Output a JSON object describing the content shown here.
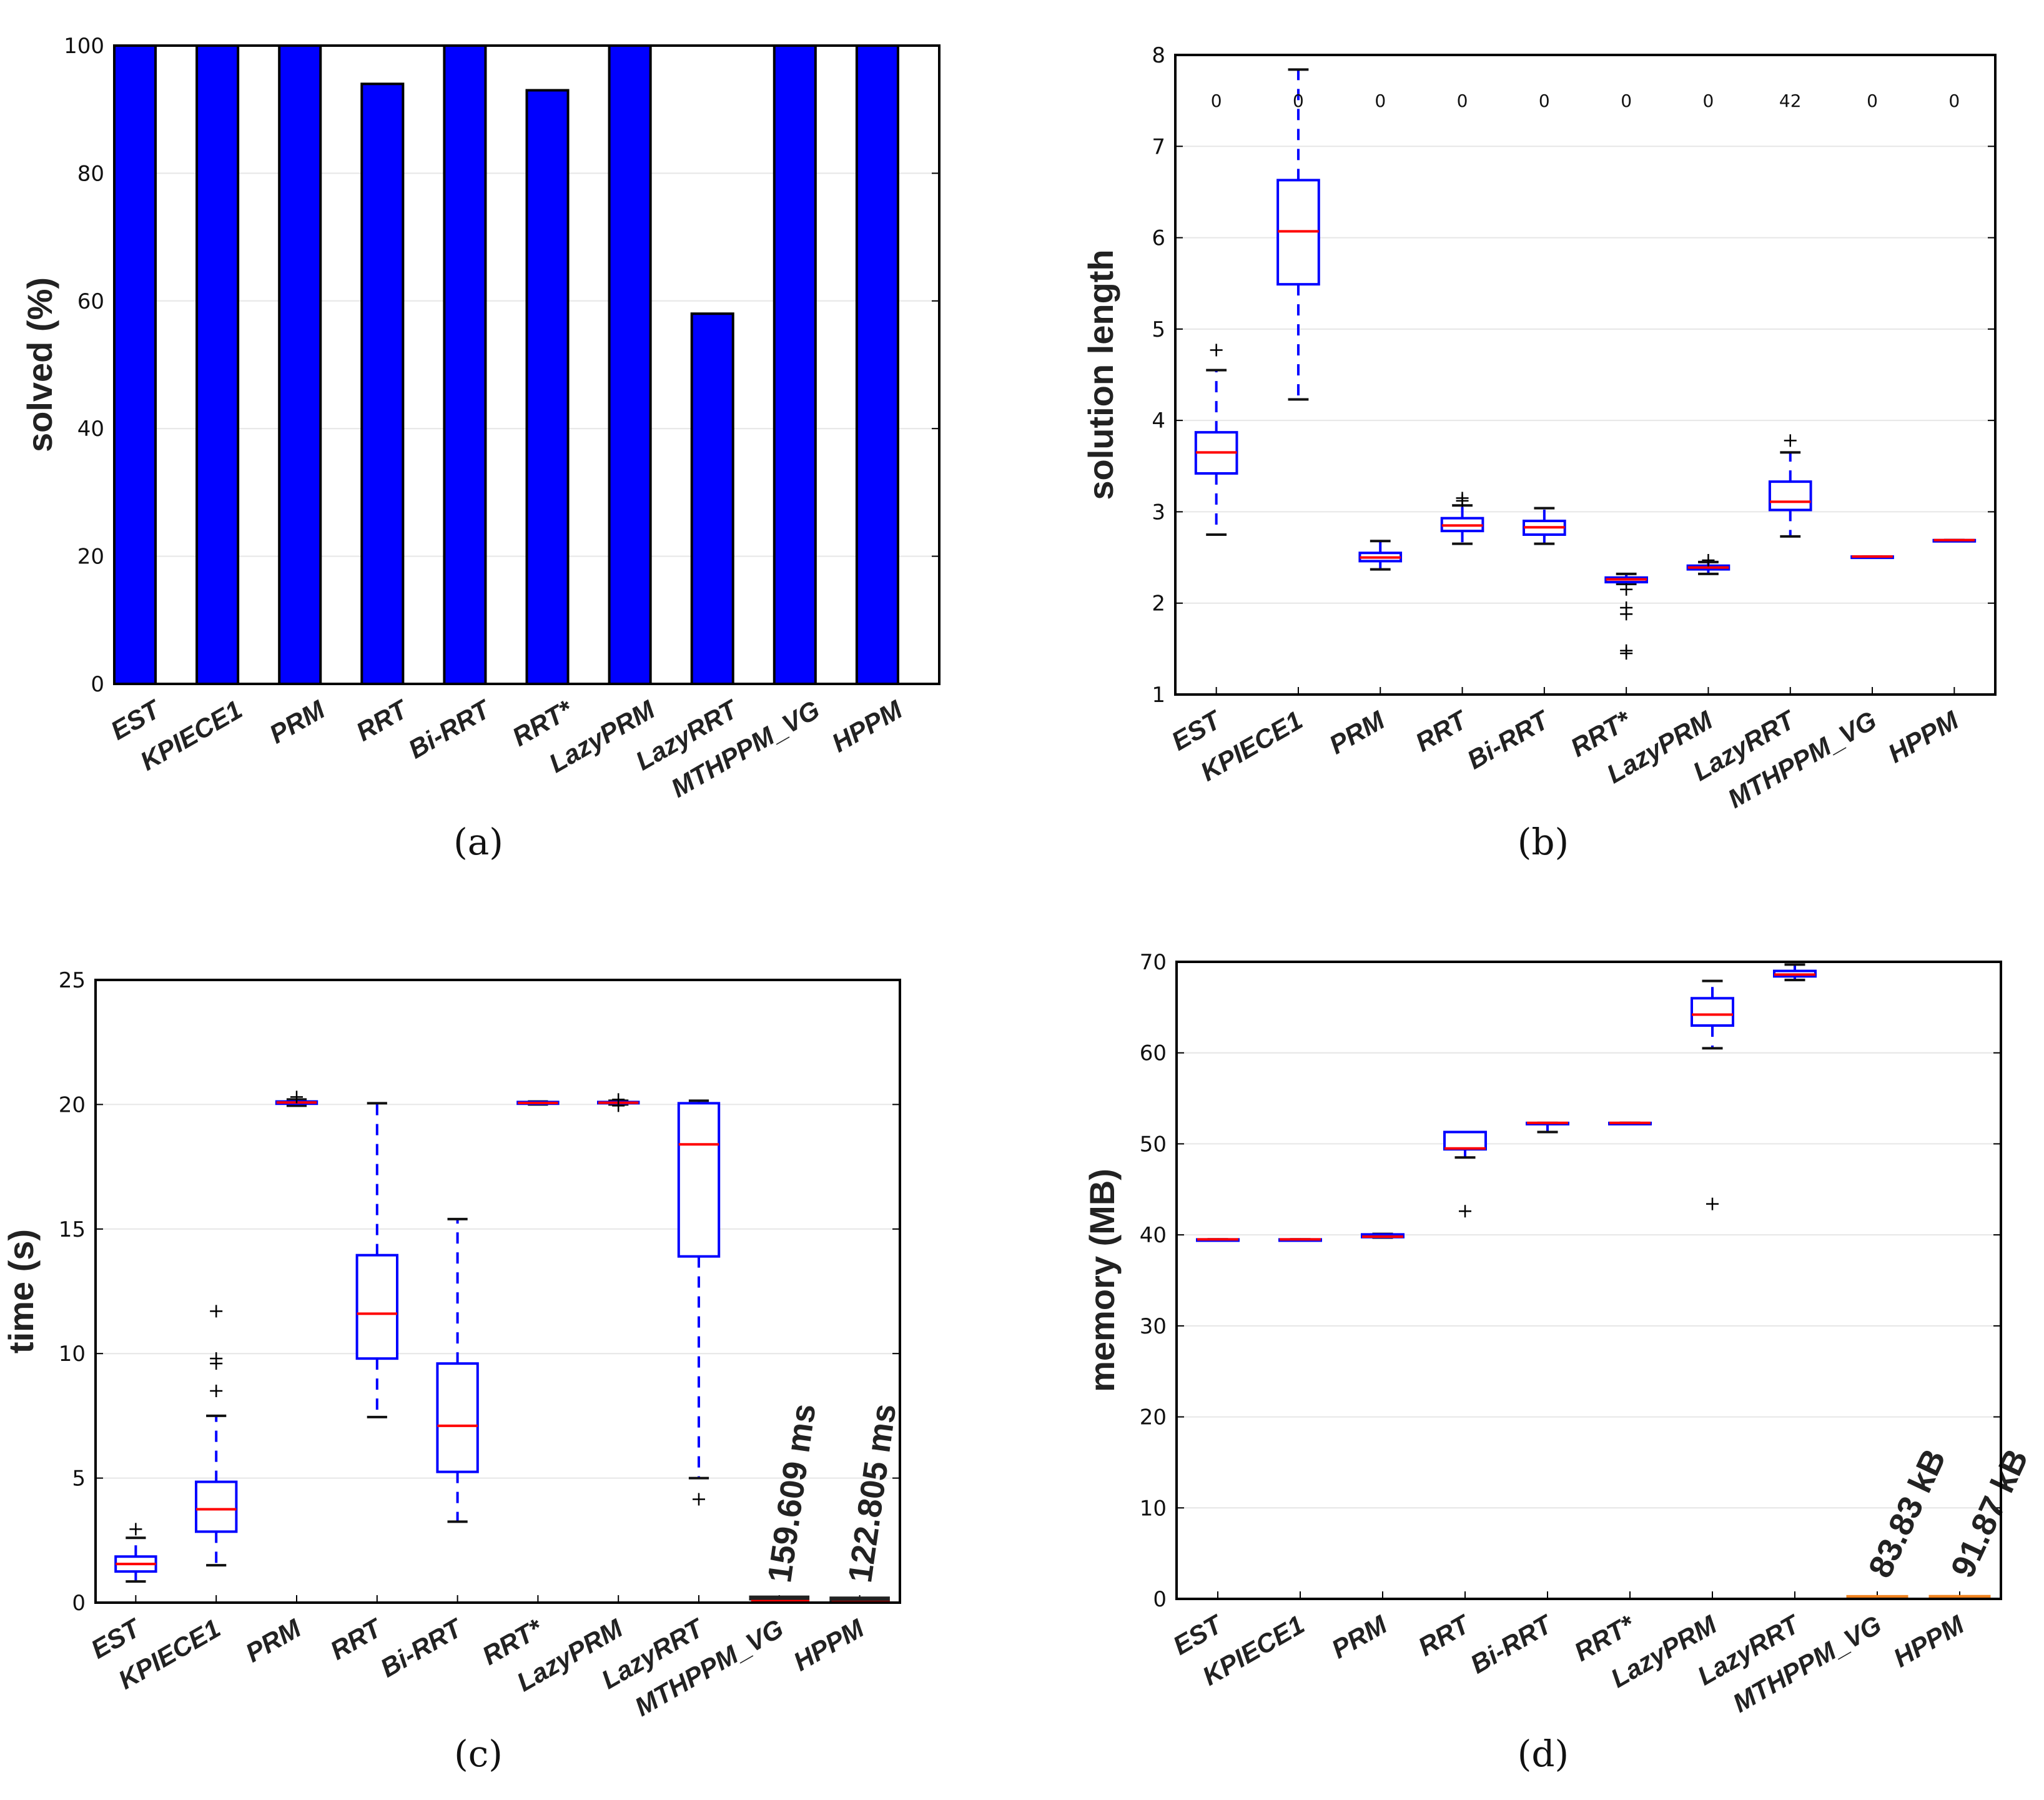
{
  "chart_data": [
    {
      "type": "bar",
      "panel_label": "(a)",
      "ylabel": "solved (%)",
      "ylim": [
        0,
        100
      ],
      "yticks": [
        0,
        20,
        40,
        60,
        80,
        100
      ],
      "grid": true,
      "categories": [
        "EST",
        "KPIECE1",
        "PRM",
        "RRT",
        "Bi-RRT",
        "RRT*",
        "LazyPRM",
        "LazyRRT",
        "MTHPPM_VG",
        "HPPM"
      ],
      "values": [
        100,
        100,
        100,
        94,
        100,
        93,
        100,
        58,
        100,
        100
      ],
      "bar_color": "#0000ff"
    },
    {
      "type": "box",
      "panel_label": "(b)",
      "ylabel": "solution length",
      "ylim": [
        1,
        8
      ],
      "yticks": [
        1,
        2,
        3,
        4,
        5,
        6,
        7,
        8
      ],
      "grid": true,
      "categories": [
        "EST",
        "KPIECE1",
        "PRM",
        "RRT",
        "Bi-RRT",
        "RRT*",
        "LazyPRM",
        "LazyRRT",
        "MTHPPM_VG",
        "HPPM"
      ],
      "counts": [
        "0",
        "0",
        "0",
        "0",
        "0",
        "0",
        "0",
        "42",
        "0",
        "0"
      ],
      "counts_y": 7.5,
      "boxes": [
        {
          "min": 2.75,
          "q1": 3.42,
          "med": 3.65,
          "q3": 3.87,
          "max": 4.55,
          "outliers": [
            4.77
          ]
        },
        {
          "min": 4.23,
          "q1": 5.49,
          "med": 6.07,
          "q3": 6.63,
          "max": 7.84,
          "outliers": []
        },
        {
          "min": 2.37,
          "q1": 2.46,
          "med": 2.5,
          "q3": 2.55,
          "max": 2.68,
          "outliers": []
        },
        {
          "min": 2.65,
          "q1": 2.79,
          "med": 2.85,
          "q3": 2.93,
          "max": 3.07,
          "outliers": [
            3.12,
            3.15
          ]
        },
        {
          "min": 2.65,
          "q1": 2.75,
          "med": 2.83,
          "q3": 2.9,
          "max": 3.04,
          "outliers": []
        },
        {
          "min": 2.21,
          "q1": 2.23,
          "med": 2.26,
          "q3": 2.28,
          "max": 2.32,
          "outliers": [
            2.15,
            1.95,
            1.88,
            1.48,
            1.45
          ]
        },
        {
          "min": 2.32,
          "q1": 2.37,
          "med": 2.39,
          "q3": 2.41,
          "max": 2.45,
          "outliers": [
            2.47
          ]
        },
        {
          "min": 2.73,
          "q1": 3.02,
          "med": 3.11,
          "q3": 3.33,
          "max": 3.65,
          "outliers": [
            3.78
          ]
        },
        {
          "min": 2.51,
          "q1": 2.51,
          "med": 2.51,
          "q3": 2.51,
          "max": 2.51,
          "outliers": []
        },
        {
          "min": 2.69,
          "q1": 2.69,
          "med": 2.69,
          "q3": 2.69,
          "max": 2.69,
          "outliers": []
        }
      ]
    },
    {
      "type": "box",
      "panel_label": "(c)",
      "ylabel": "time (s)",
      "ylim": [
        0,
        25
      ],
      "yticks": [
        0,
        5,
        10,
        15,
        20,
        25
      ],
      "grid": true,
      "categories": [
        "EST",
        "KPIECE1",
        "PRM",
        "RRT",
        "Bi-RRT",
        "RRT*",
        "LazyPRM",
        "LazyRRT",
        "MTHPPM_VG",
        "HPPM"
      ],
      "boxes": [
        {
          "min": 0.85,
          "q1": 1.25,
          "med": 1.55,
          "q3": 1.85,
          "max": 2.6,
          "outliers": [
            2.95
          ]
        },
        {
          "min": 1.5,
          "q1": 2.85,
          "med": 3.75,
          "q3": 4.85,
          "max": 7.5,
          "outliers": [
            8.5,
            9.6,
            9.8,
            11.7
          ]
        },
        {
          "min": 19.95,
          "q1": 20.03,
          "med": 20.08,
          "q3": 20.12,
          "max": 20.2,
          "outliers": [
            20.3
          ]
        },
        {
          "min": 7.45,
          "q1": 9.8,
          "med": 11.6,
          "q3": 13.95,
          "max": 20.05,
          "outliers": []
        },
        {
          "min": 3.25,
          "q1": 5.25,
          "med": 7.1,
          "q3": 9.6,
          "max": 15.4,
          "outliers": []
        },
        {
          "min": 20.0,
          "q1": 20.03,
          "med": 20.06,
          "q3": 20.1,
          "max": 20.12,
          "outliers": []
        },
        {
          "min": 20.0,
          "q1": 20.05,
          "med": 20.07,
          "q3": 20.1,
          "max": 20.15,
          "outliers": [
            20.2,
            19.95
          ]
        },
        {
          "min": 5.0,
          "q1": 13.9,
          "med": 18.4,
          "q3": 20.05,
          "max": 20.15,
          "outliers": [
            4.15
          ]
        },
        {
          "min": 0.16,
          "q1": 0.16,
          "med": 0.16,
          "q3": 0.16,
          "max": 0.16,
          "outliers": [],
          "highlight": true
        },
        {
          "min": 0.12,
          "q1": 0.12,
          "med": 0.12,
          "q3": 0.12,
          "max": 0.12,
          "outliers": [],
          "highlight": true
        }
      ],
      "annotations": [
        {
          "category": "MTHPPM_VG",
          "text": "159.609 ms"
        },
        {
          "category": "HPPM",
          "text": "122.805 ms"
        }
      ],
      "highlight_color": "#222222"
    },
    {
      "type": "box",
      "panel_label": "(d)",
      "ylabel": "memory (MB)",
      "ylim": [
        0,
        70
      ],
      "yticks": [
        0,
        10,
        20,
        30,
        40,
        50,
        60,
        70
      ],
      "grid": true,
      "categories": [
        "EST",
        "KPIECE1",
        "PRM",
        "RRT",
        "Bi-RRT",
        "RRT*",
        "LazyPRM",
        "LazyRRT",
        "MTHPPM_VG",
        "HPPM"
      ],
      "boxes": [
        {
          "min": 39.5,
          "q1": 39.5,
          "med": 39.5,
          "q3": 39.5,
          "max": 39.5,
          "outliers": []
        },
        {
          "min": 39.5,
          "q1": 39.5,
          "med": 39.5,
          "q3": 39.5,
          "max": 39.5,
          "outliers": []
        },
        {
          "min": 39.7,
          "q1": 39.75,
          "med": 39.8,
          "q3": 40.05,
          "max": 40.1,
          "outliers": []
        },
        {
          "min": 48.5,
          "q1": 49.4,
          "med": 49.5,
          "q3": 51.3,
          "max": 51.3,
          "outliers": [
            42.6
          ]
        },
        {
          "min": 51.3,
          "q1": 52.3,
          "med": 52.3,
          "q3": 52.3,
          "max": 52.3,
          "outliers": []
        },
        {
          "min": 52.3,
          "q1": 52.3,
          "med": 52.3,
          "q3": 52.3,
          "max": 52.3,
          "outliers": []
        },
        {
          "min": 60.5,
          "q1": 63.0,
          "med": 64.2,
          "q3": 66.0,
          "max": 67.9,
          "outliers": [
            43.4
          ]
        },
        {
          "min": 68.0,
          "q1": 68.4,
          "med": 68.6,
          "q3": 69.0,
          "max": 69.7,
          "outliers": []
        },
        {
          "min": 0.08,
          "q1": 0.08,
          "med": 0.08,
          "q3": 0.08,
          "max": 0.08,
          "outliers": [],
          "highlight": true
        },
        {
          "min": 0.09,
          "q1": 0.09,
          "med": 0.09,
          "q3": 0.09,
          "max": 0.09,
          "outliers": [],
          "highlight": true
        }
      ],
      "annotations": [
        {
          "category": "MTHPPM_VG",
          "text": "83.83 kB"
        },
        {
          "category": "HPPM",
          "text": "91.87 kB"
        }
      ],
      "highlight_color": "#f0821e"
    }
  ],
  "colors": {
    "box": "#0000ff",
    "median": "#ff0000",
    "whisker_cap": "#111111",
    "grid": "#e6e6e6"
  }
}
